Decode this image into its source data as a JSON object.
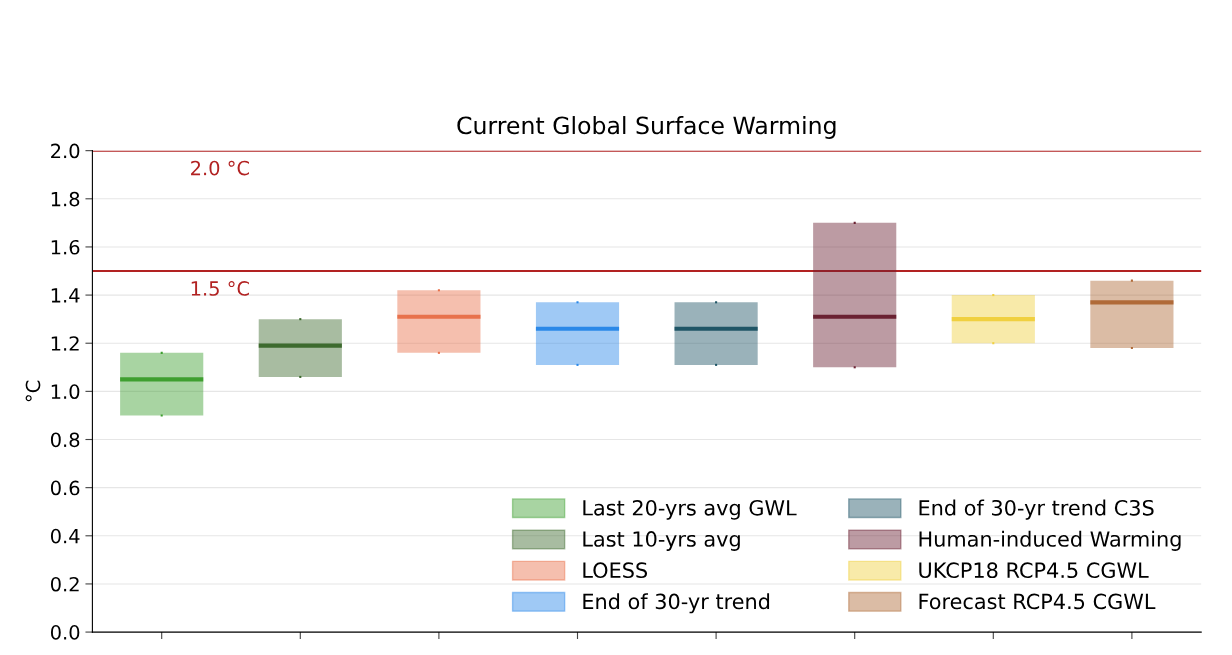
{
  "chart_data": {
    "type": "box",
    "title": "Current Global Surface Warming",
    "ylabel": "°C",
    "categories": [
      null,
      null,
      null,
      null,
      null,
      null,
      null,
      null
    ],
    "series": [
      {
        "name": "Last 20-yrs avg GWL",
        "color": "#3f9f30",
        "boxes": [
          {
            "q1": 0.9,
            "median": 1.05,
            "q3": 1.16
          },
          null,
          null,
          null,
          null,
          null,
          null,
          null
        ]
      },
      {
        "name": "Last 10-yrs avg",
        "color": "#3d6a2e",
        "boxes": [
          null,
          {
            "q1": 1.06,
            "median": 1.19,
            "q3": 1.3
          },
          null,
          null,
          null,
          null,
          null,
          null
        ]
      },
      {
        "name": "LOESS",
        "color": "#e8724c",
        "boxes": [
          null,
          null,
          {
            "q1": 1.16,
            "median": 1.31,
            "q3": 1.42
          },
          null,
          null,
          null,
          null,
          null
        ]
      },
      {
        "name": "End of 30-yr trend",
        "color": "#2a88e8",
        "boxes": [
          null,
          null,
          null,
          {
            "q1": 1.11,
            "median": 1.26,
            "q3": 1.37
          },
          null,
          null,
          null,
          null
        ]
      },
      {
        "name": "End of 30-yr trend C3S",
        "color": "#1f5566",
        "boxes": [
          null,
          null,
          null,
          null,
          {
            "q1": 1.11,
            "median": 1.26,
            "q3": 1.37
          },
          null,
          null,
          null
        ]
      },
      {
        "name": "Human-induced Warming",
        "color": "#6a2232",
        "boxes": [
          null,
          null,
          null,
          null,
          null,
          {
            "q1": 1.1,
            "median": 1.31,
            "q3": 1.7
          },
          null,
          null
        ]
      },
      {
        "name": "UKCP18 RCP4.5 CGWL",
        "color": "#f0d040",
        "boxes": [
          null,
          null,
          null,
          null,
          null,
          null,
          {
            "q1": 1.2,
            "median": 1.3,
            "q3": 1.4
          },
          null
        ]
      },
      {
        "name": "Forecast RCP4.5 CGWL",
        "color": "#b06a38",
        "boxes": [
          null,
          null,
          null,
          null,
          null,
          null,
          null,
          {
            "q1": 1.18,
            "median": 1.37,
            "q3": 1.46
          }
        ]
      }
    ],
    "ylim": [
      0,
      2.0
    ],
    "yticks": [
      {
        "value": 0,
        "label": "0.0"
      },
      0.2,
      0.4,
      0.6,
      0.8,
      {
        "value": 1,
        "label": "1.0"
      },
      1.2,
      1.4,
      1.6,
      1.8,
      {
        "value": 2,
        "label": "2.0"
      }
    ],
    "ref_lines": [
      {
        "axis": "y",
        "value": 2.0,
        "label": "2.0 °C",
        "color": "#b22222"
      },
      {
        "axis": "y",
        "value": 1.5,
        "label": "1.5 °C",
        "color": "#b22222"
      }
    ],
    "grid": "y",
    "legend": "bottom right",
    "tick_labels": "y"
  }
}
